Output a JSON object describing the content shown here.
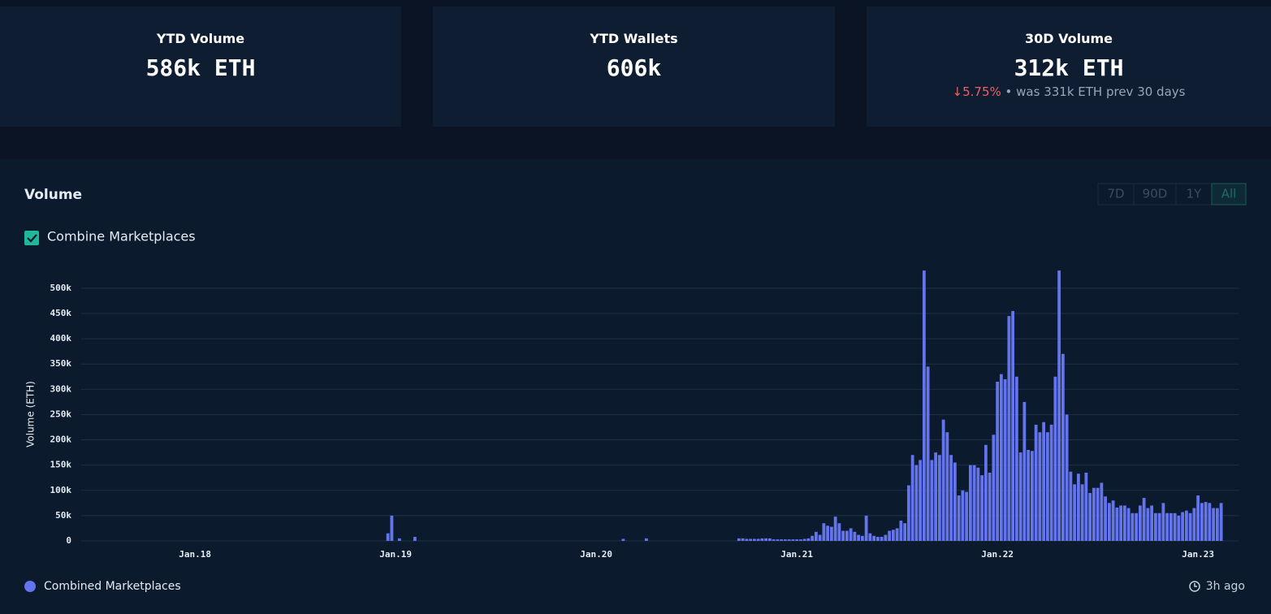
{
  "cards": [
    {
      "title": "YTD Volume",
      "value": "586k ETH"
    },
    {
      "title": "YTD Wallets",
      "value": "606k"
    },
    {
      "title": "30D Volume",
      "value": "312k ETH",
      "change": "5.75%",
      "note": "• was 331k ETH prev 30 days"
    }
  ],
  "panel": {
    "title": "Volume",
    "ranges": [
      "7D",
      "90D",
      "1Y",
      "All"
    ],
    "checkbox": "Combine Marketplaces",
    "updated": "3h ago"
  },
  "chart_data": {
    "type": "bar",
    "ylabel": "Volume (ETH)",
    "xlim": [
      -29.5,
      270.5
    ],
    "xticks": [
      {
        "value": 0,
        "label": "Jan.18"
      },
      {
        "value": 52,
        "label": "Jan.19"
      },
      {
        "value": 104,
        "label": "Jan.20"
      },
      {
        "value": 156,
        "label": "Jan.21"
      },
      {
        "value": 208,
        "label": "Jan.22"
      },
      {
        "value": 260,
        "label": "Jan.23"
      }
    ],
    "ylim": [
      0,
      540000
    ],
    "yticks": [
      0,
      {
        "value": 50000,
        "label": "50k"
      },
      {
        "value": 100000,
        "label": "100k"
      },
      {
        "value": 150000,
        "label": "150k"
      },
      {
        "value": 200000,
        "label": "200k"
      },
      {
        "value": 250000,
        "label": "250k"
      },
      {
        "value": 300000,
        "label": "300k"
      },
      {
        "value": 350000,
        "label": "350k"
      },
      {
        "value": 400000,
        "label": "400k"
      },
      {
        "value": 450000,
        "label": "450k"
      },
      {
        "value": 500000,
        "label": "500k"
      }
    ],
    "grid": true,
    "legend": "bottom-left",
    "x": [
      50,
      51,
      53,
      57,
      111,
      117,
      141,
      142,
      143,
      144,
      145,
      146,
      147,
      148,
      149,
      150,
      151,
      152,
      153,
      154,
      155,
      156,
      157,
      158,
      159,
      160,
      161,
      162,
      163,
      164,
      165,
      166,
      167,
      168,
      169,
      170,
      171,
      172,
      173,
      174,
      175,
      176,
      177,
      178,
      179,
      180,
      181,
      182,
      183,
      184,
      185,
      186,
      187,
      188,
      189,
      190,
      191,
      192,
      193,
      194,
      195,
      196,
      197,
      198,
      199,
      200,
      201,
      202,
      203,
      204,
      205,
      206,
      207,
      208,
      209,
      210,
      211,
      212,
      213,
      214,
      215,
      216,
      217,
      218,
      219,
      220,
      221,
      222,
      223,
      224,
      225,
      226,
      227,
      228,
      229,
      230,
      231,
      232,
      233,
      234,
      235,
      236,
      237,
      238,
      239,
      240,
      241,
      242,
      243,
      244,
      245,
      246,
      247,
      248,
      249,
      250,
      251,
      252,
      253,
      254,
      255,
      256,
      257,
      258,
      259,
      260,
      261,
      262,
      263,
      264,
      265,
      266
    ],
    "series": [
      {
        "name": "Combined Marketplaces",
        "color": "#6474ec",
        "values": [
          15000,
          50000,
          5000,
          8000,
          4000,
          5000,
          5000,
          5000,
          4000,
          4000,
          4000,
          4000,
          5000,
          5000,
          5000,
          3000,
          3000,
          3000,
          3000,
          3000,
          3000,
          3000,
          3000,
          4000,
          5000,
          10000,
          18000,
          12000,
          35000,
          30000,
          28000,
          48000,
          35000,
          20000,
          20000,
          25000,
          18000,
          12000,
          10000,
          50000,
          15000,
          10000,
          8000,
          8000,
          12000,
          20000,
          22000,
          25000,
          40000,
          35000,
          110000,
          170000,
          150000,
          160000,
          535000,
          345000,
          160000,
          175000,
          170000,
          240000,
          215000,
          170000,
          155000,
          90000,
          100000,
          97000,
          150000,
          150000,
          145000,
          130000,
          190000,
          135000,
          210000,
          315000,
          330000,
          320000,
          445000,
          455000,
          325000,
          175000,
          275000,
          180000,
          178000,
          230000,
          215000,
          235000,
          215000,
          230000,
          325000,
          535000,
          370000,
          250000,
          137000,
          112000,
          133000,
          112000,
          135000,
          95000,
          105000,
          105000,
          115000,
          88000,
          75000,
          80000,
          66000,
          70000,
          70000,
          65000,
          55000,
          55000,
          70000,
          85000,
          65000,
          70000,
          55000,
          55000,
          75000,
          55000,
          55000,
          55000,
          50000,
          57000,
          60000,
          55000,
          65000,
          90000,
          75000,
          77000,
          75000,
          65000,
          65000,
          75000
        ]
      }
    ]
  }
}
